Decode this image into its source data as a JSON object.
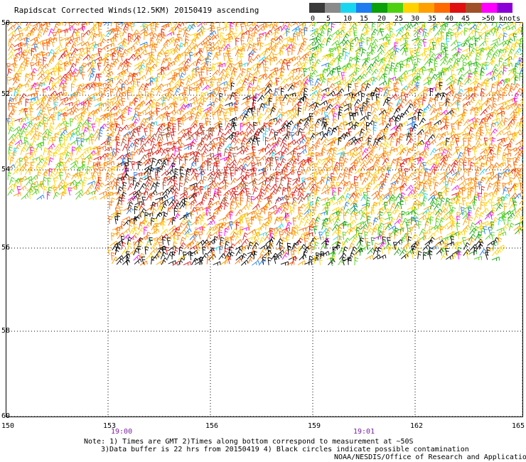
{
  "header": {
    "title": "Rapidscat Corrected Winds(12.5KM) 20150419 ascending"
  },
  "legend": {
    "colors": [
      "#3a3a3a",
      "#8a8a8a",
      "#19d6f0",
      "#1e7cf0",
      "#0aa00a",
      "#4cd010",
      "#ffd200",
      "#ffa000",
      "#ff6a00",
      "#e01010",
      "#a05028",
      "#ff00ff",
      "#8c00d8"
    ],
    "labels": [
      "0",
      "5",
      "10",
      "15",
      "20",
      "25",
      "30",
      "35",
      "40",
      "45",
      ">50 knots"
    ]
  },
  "map": {
    "lat_labels": [
      "50",
      "52",
      "54",
      "56",
      "58",
      "60"
    ],
    "lon_labels": [
      "150",
      "153",
      "156",
      "159",
      "162",
      "165"
    ],
    "time_labels": [
      "19:00",
      "19:01"
    ]
  },
  "footer": {
    "note_line1": "Note: 1) Times are GMT 2)Times along bottom correspond to measurement at ~50S",
    "note_line2": "3)Data buffer is 22 hrs from 20150419 4) Black circles indicate possible contamination",
    "credit": "NOAA/NESDIS/Office of Research and Applications"
  }
}
